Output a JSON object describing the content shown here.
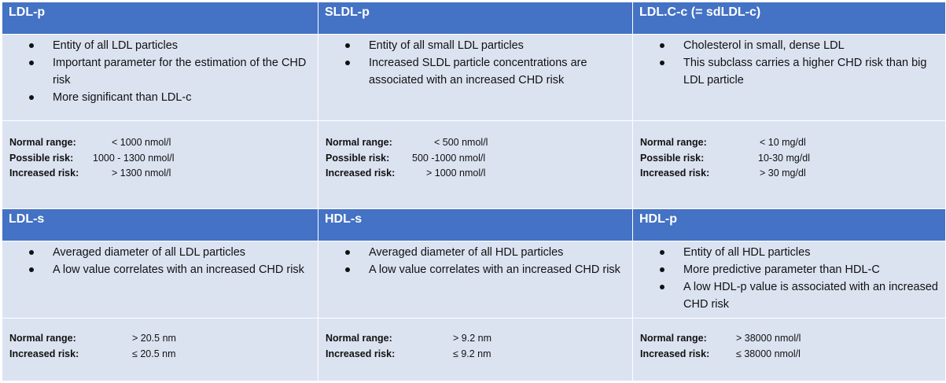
{
  "rows": [
    {
      "cells": [
        {
          "title": "LDL-p",
          "points": [
            "Entity of all LDL particles",
            "Important parameter for the estimation of the CHD risk",
            "More significant than LDL-c"
          ],
          "ranges": [
            {
              "label": "Normal range:",
              "value": "< 1000 nmol/l"
            },
            {
              "label": "Possible risk:",
              "value": "1000 - 1300 nmol/l"
            },
            {
              "label": "Increased risk:",
              "value": "> 1300 nmol/l"
            }
          ]
        },
        {
          "title": "SLDL-p",
          "points": [
            "Entity of all small LDL particles",
            "Increased SLDL particle concentrations are associated with an increased CHD risk"
          ],
          "ranges": [
            {
              "label": "Normal range:",
              "value": "< 500 nmol/l"
            },
            {
              "label": "Possible risk:",
              "value": "500 -1000 nmol/l"
            },
            {
              "label": "Increased risk:",
              "value": "> 1000 nmol/l"
            }
          ]
        },
        {
          "title": "LDL.C-c (= sdLDL-c)",
          "points": [
            "Cholesterol in small, dense LDL",
            "This subclass carries a higher CHD risk than big LDL particle"
          ],
          "ranges": [
            {
              "label": "Normal range:",
              "value": "< 10 mg/dl"
            },
            {
              "label": "Possible risk:",
              "value": "10-30 mg/dl"
            },
            {
              "label": "Increased risk:",
              "value": "> 30 mg/dl"
            }
          ]
        }
      ]
    },
    {
      "cells": [
        {
          "title": "LDL-s",
          "points": [
            "Averaged diameter of all LDL particles",
            "A low value correlates with an increased CHD risk"
          ],
          "ranges": [
            {
              "label": "Normal range:",
              "value": "> 20.5 nm"
            },
            {
              "label": "Increased risk:",
              "value": "≤ 20.5 nm"
            }
          ]
        },
        {
          "title": "HDL-s",
          "points": [
            "Averaged diameter of all HDL particles",
            "A low value correlates with an increased CHD risk"
          ],
          "ranges": [
            {
              "label": "Normal range:",
              "value": "> 9.2 nm"
            },
            {
              "label": "Increased risk:",
              "value": "≤ 9.2 nm"
            }
          ]
        },
        {
          "title": "HDL-p",
          "points": [
            "Entity of all HDL particles",
            "More predictive parameter than HDL-C",
            "A low HDL-p value is associated with an increased CHD risk"
          ],
          "ranges": [
            {
              "label": "Normal range:",
              "value": "> 38000 nmol/l"
            },
            {
              "label": "Increased risk:",
              "value": "≤ 38000 nmol/l"
            }
          ]
        }
      ]
    }
  ],
  "colors": {
    "header_bg": "#4472c4",
    "cell_bg": "#dbe3f1"
  }
}
